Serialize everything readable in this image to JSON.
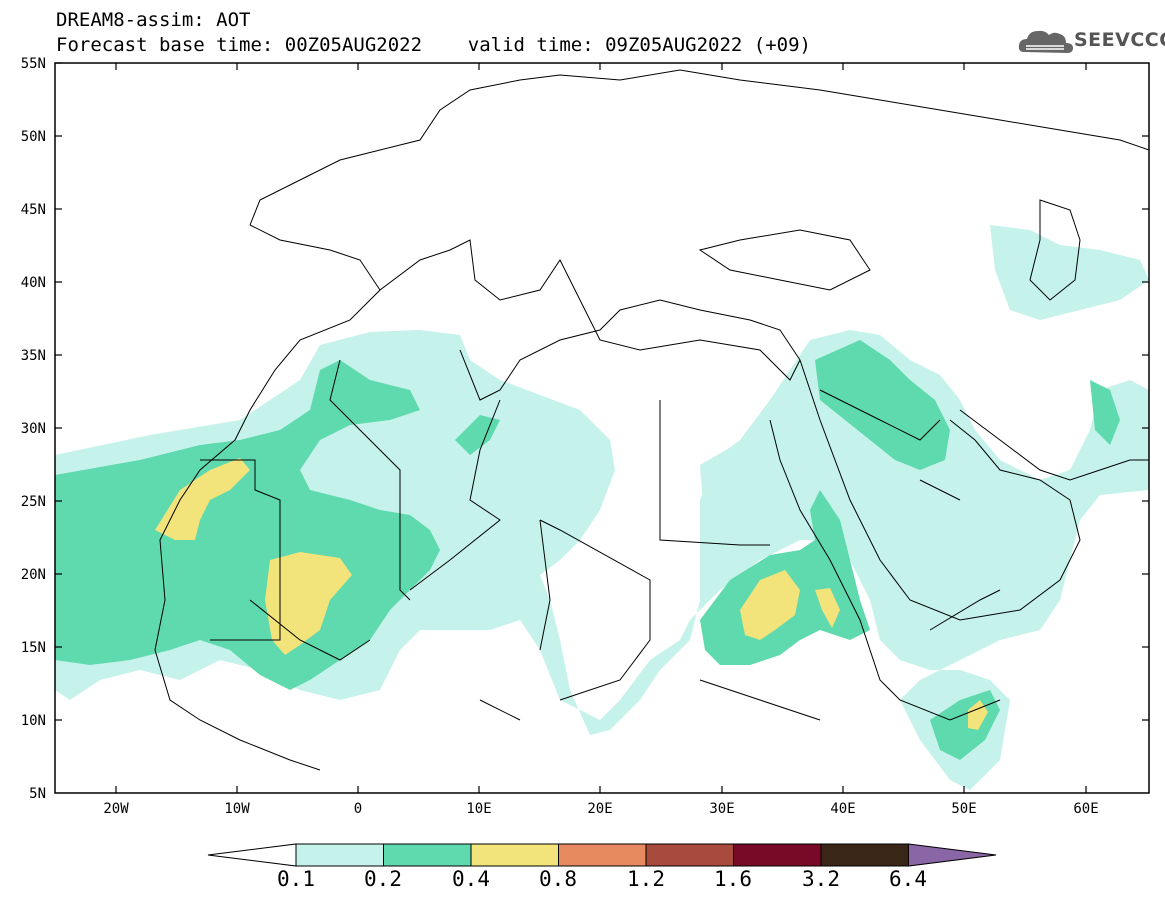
{
  "header": {
    "line1": "DREAM8-assim: AOT",
    "line2": "Forecast base time: 00Z05AUG2022    valid time: 09Z05AUG2022 (+09)"
  },
  "logo": {
    "text": "SEEVCCC",
    "icon": "cloud-icon"
  },
  "map": {
    "lat_labels": [
      "55N",
      "50N",
      "45N",
      "40N",
      "35N",
      "30N",
      "25N",
      "20N",
      "15N",
      "10N",
      "5N"
    ],
    "lon_labels": [
      "20W",
      "10W",
      "0",
      "10E",
      "20E",
      "30E",
      "40E",
      "50E",
      "60E"
    ]
  },
  "colorbar": {
    "labels": [
      "0.1",
      "0.2",
      "0.4",
      "0.8",
      "1.2",
      "1.6",
      "3.2",
      "6.4"
    ],
    "colors": [
      "#c5f2ea",
      "#5fd9ae",
      "#f2e37a",
      "#e88a60",
      "#a84a3c",
      "#780a28",
      "#3a2616",
      "#8a66a6"
    ]
  },
  "colors": {
    "aot_low": "#c5f2ea",
    "aot_mid": "#5fd9ae",
    "aot_high": "#f2e37a"
  }
}
